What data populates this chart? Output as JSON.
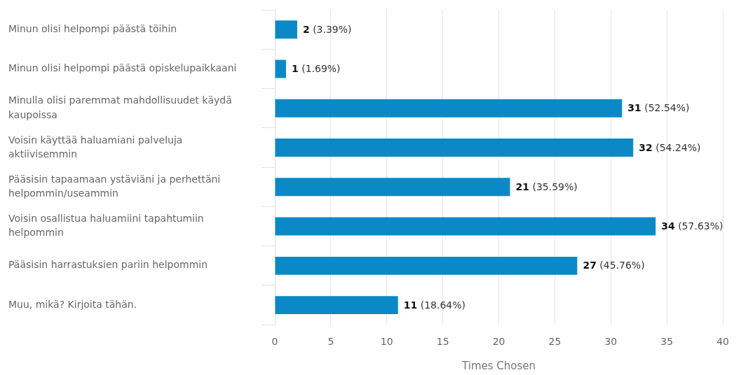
{
  "chart_data": {
    "type": "bar",
    "orientation": "horizontal",
    "categories": [
      "Minun olisi helpompi päästä töihin",
      "Minun olisi helpompi päästä opiskelupaikkaani",
      "Minulla olisi paremmat mahdollisuudet käydä kaupoissa",
      "Voisin käyttää haluamiani palveluja aktiivisemmin",
      "Pääsisin tapaamaan ystäviäni ja perhettäni helpommin/useammin",
      "Voisin osallistua haluamiini tapahtumiin helpommin",
      "Pääsisin harrastuksien pariin helpommin",
      "Muu, mikä? Kirjoita tähän."
    ],
    "values": [
      2,
      1,
      31,
      32,
      21,
      34,
      27,
      11
    ],
    "value_labels": [
      "2 (3.39%)",
      "1 (1.69%)",
      "31 (52.54%)",
      "32 (54.24%)",
      "21 (35.59%)",
      "34 (57.63%)",
      "27 (45.76%)",
      "11 (18.64%)"
    ],
    "color": "#0b89c7",
    "xlabel": "Times Chosen",
    "xlim": [
      0,
      40
    ],
    "xticks": [
      0,
      5,
      10,
      15,
      20,
      25,
      30,
      35,
      40
    ],
    "grid": "x"
  }
}
